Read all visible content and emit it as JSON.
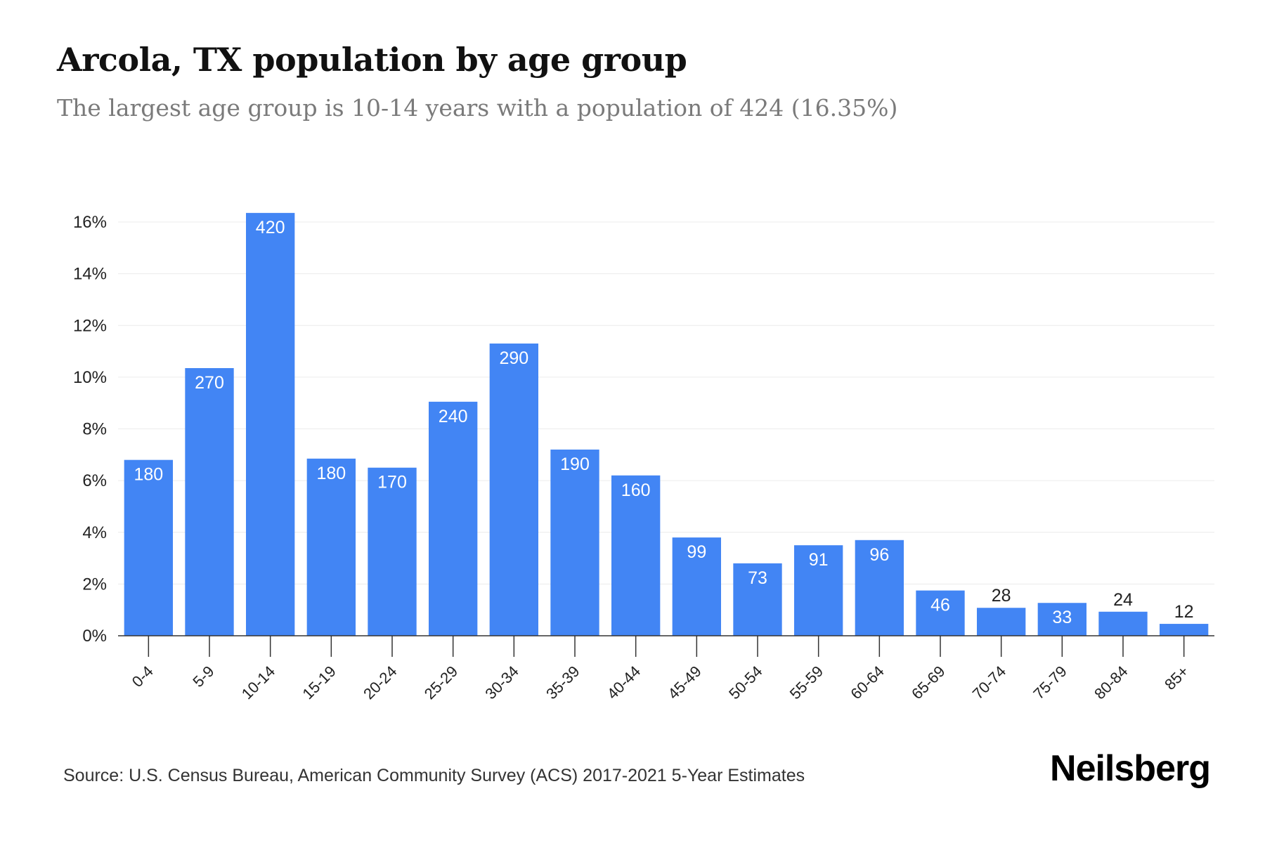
{
  "header": {
    "title": "Arcola, TX population by age group",
    "subtitle": "The largest age group is 10-14 years with a population of 424 (16.35%)"
  },
  "footer": {
    "source": "Source: U.S. Census Bureau, American Community Survey (ACS) 2017-2021 5-Year Estimates",
    "logo": "Neilsberg"
  },
  "colors": {
    "bar": "#4285f4",
    "label_inside": "#ffffff",
    "label_outside": "#222222",
    "grid": "#ececec",
    "axis": "#333333"
  },
  "chart_data": {
    "type": "bar",
    "title": "Arcola, TX population by age group",
    "subtitle": "The largest age group is 10-14 years with a population of 424 (16.35%)",
    "xlabel": "",
    "ylabel": "",
    "ylim": [
      0,
      16
    ],
    "yticks": [
      0,
      2,
      4,
      6,
      8,
      10,
      12,
      14,
      16
    ],
    "ytick_labels": [
      "0%",
      "2%",
      "4%",
      "6%",
      "8%",
      "10%",
      "12%",
      "14%",
      "16%"
    ],
    "grid": true,
    "legend": "none",
    "categories": [
      "0-4",
      "5-9",
      "10-14",
      "15-19",
      "20-24",
      "25-29",
      "30-34",
      "35-39",
      "40-44",
      "45-49",
      "50-54",
      "55-59",
      "60-64",
      "65-69",
      "70-74",
      "75-79",
      "80-84",
      "85+"
    ],
    "values": [
      6.8,
      10.35,
      16.35,
      6.85,
      6.5,
      9.05,
      11.3,
      7.2,
      6.2,
      3.8,
      2.8,
      3.5,
      3.7,
      1.75,
      1.08,
      1.27,
      0.93,
      0.46
    ],
    "data_labels": [
      "180",
      "270",
      "420",
      "180",
      "170",
      "240",
      "290",
      "190",
      "160",
      "99",
      "73",
      "91",
      "96",
      "46",
      "28",
      "33",
      "24",
      "12"
    ]
  }
}
